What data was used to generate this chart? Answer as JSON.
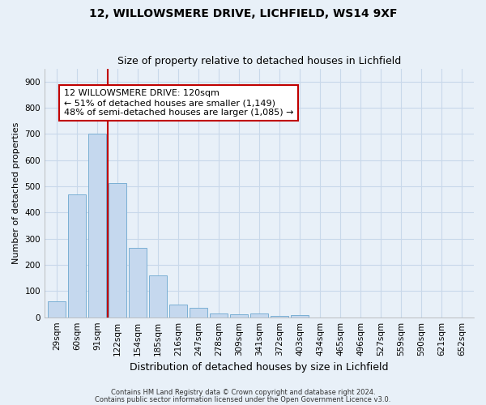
{
  "title": "12, WILLOWSMERE DRIVE, LICHFIELD, WS14 9XF",
  "subtitle": "Size of property relative to detached houses in Lichfield",
  "xlabel": "Distribution of detached houses by size in Lichfield",
  "ylabel": "Number of detached properties",
  "footnote1": "Contains HM Land Registry data © Crown copyright and database right 2024.",
  "footnote2": "Contains public sector information licensed under the Open Government Licence v3.0.",
  "bar_labels": [
    "29sqm",
    "60sqm",
    "91sqm",
    "122sqm",
    "154sqm",
    "185sqm",
    "216sqm",
    "247sqm",
    "278sqm",
    "309sqm",
    "341sqm",
    "372sqm",
    "403sqm",
    "434sqm",
    "465sqm",
    "496sqm",
    "527sqm",
    "559sqm",
    "590sqm",
    "621sqm",
    "652sqm"
  ],
  "bar_values": [
    62,
    468,
    700,
    514,
    265,
    160,
    48,
    35,
    16,
    11,
    13,
    6,
    8,
    0,
    0,
    0,
    0,
    0,
    0,
    0,
    0
  ],
  "bar_color": "#c5d8ee",
  "bar_edge_color": "#7aafd4",
  "grid_color": "#c8d8ea",
  "background_color": "#e8f0f8",
  "vline_color": "#c00000",
  "annotation_text": "12 WILLOWSMERE DRIVE: 120sqm\n← 51% of detached houses are smaller (1,149)\n48% of semi-detached houses are larger (1,085) →",
  "annotation_box_color": "#ffffff",
  "annotation_box_edge_color": "#c00000",
  "ylim": [
    0,
    950
  ],
  "yticks": [
    0,
    100,
    200,
    300,
    400,
    500,
    600,
    700,
    800,
    900
  ],
  "title_fontsize": 10,
  "subtitle_fontsize": 9,
  "annotation_fontsize": 8,
  "ylabel_fontsize": 8,
  "xlabel_fontsize": 9,
  "tick_fontsize": 7.5,
  "footnote_fontsize": 6
}
